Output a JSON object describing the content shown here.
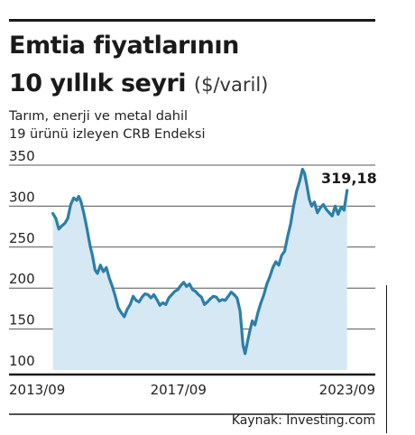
{
  "title_line1": "Emtia fiyatlarının",
  "title_line2": "10 yıllık seyri",
  "unit": "($/varil)",
  "subtitle_line1": "Tarım, enerji ve metal dahil",
  "subtitle_line2": "19 ürünü izleyen CRB Endeksi",
  "source": "Kaynak: Investing.com",
  "chart_data": {
    "type": "area",
    "title": "Emtia fiyatlarının 10 yıllık seyri",
    "subtitle": "Tarım, enerji ve metal dahil 19 ürünü izleyen CRB Endeksi",
    "xlabel": "",
    "ylabel": "",
    "ylim": [
      100,
      350
    ],
    "xlim": [
      2013.67,
      2023.75
    ],
    "y_ticks": [
      350,
      300,
      250,
      200,
      150,
      100
    ],
    "x_tick_labels": [
      {
        "x": 2013.67,
        "label": "2013/09"
      },
      {
        "x": 2017.67,
        "label": "2017/09"
      },
      {
        "x": 2023.67,
        "label": "2023/09"
      }
    ],
    "grid": "horizontal",
    "colors": {
      "line": "#2b7fa8",
      "fill": "#d6e8f3",
      "grid": "#555555"
    },
    "last_value_label": "319,18",
    "series": [
      {
        "x": [
          2013.75,
          2013.85,
          2013.95,
          2014.05,
          2014.15,
          2014.25,
          2014.35,
          2014.45,
          2014.55,
          2014.62,
          2014.7,
          2014.8,
          2014.9,
          2015.0,
          2015.08,
          2015.17,
          2015.25,
          2015.35,
          2015.45,
          2015.55,
          2015.65,
          2015.75,
          2015.85,
          2015.95,
          2016.05,
          2016.15,
          2016.25,
          2016.35,
          2016.45,
          2016.55,
          2016.65,
          2016.75,
          2016.85,
          2016.95,
          2017.05,
          2017.15,
          2017.25,
          2017.35,
          2017.45,
          2017.55,
          2017.65,
          2017.75,
          2017.85,
          2017.95,
          2018.05,
          2018.15,
          2018.25,
          2018.35,
          2018.45,
          2018.55,
          2018.65,
          2018.75,
          2018.85,
          2018.95,
          2019.05,
          2019.15,
          2019.25,
          2019.35,
          2019.45,
          2019.55,
          2019.65,
          2019.75,
          2019.85,
          2019.95,
          2020.05,
          2020.15,
          2020.22,
          2020.3,
          2020.38,
          2020.46,
          2020.55,
          2020.65,
          2020.75,
          2020.85,
          2020.95,
          2021.05,
          2021.15,
          2021.25,
          2021.35,
          2021.45,
          2021.55,
          2021.65,
          2021.75,
          2021.85,
          2021.95,
          2022.05,
          2022.15,
          2022.22,
          2022.3,
          2022.38,
          2022.46,
          2022.55,
          2022.65,
          2022.75,
          2022.85,
          2022.95,
          2023.05,
          2023.15,
          2023.25,
          2023.35,
          2023.45,
          2023.55,
          2023.65
        ],
        "values": [
          291,
          285,
          272,
          276,
          279,
          285,
          302,
          310,
          307,
          312,
          305,
          290,
          272,
          252,
          240,
          222,
          218,
          228,
          220,
          225,
          212,
          202,
          190,
          176,
          170,
          165,
          174,
          180,
          190,
          185,
          183,
          189,
          193,
          192,
          188,
          192,
          186,
          179,
          182,
          180,
          188,
          192,
          196,
          198,
          203,
          207,
          202,
          205,
          198,
          196,
          192,
          189,
          180,
          183,
          187,
          190,
          189,
          184,
          186,
          185,
          190,
          195,
          192,
          188,
          172,
          130,
          120,
          135,
          148,
          160,
          155,
          170,
          182,
          192,
          205,
          214,
          225,
          232,
          228,
          240,
          245,
          263,
          278,
          300,
          318,
          330,
          345,
          340,
          325,
          308,
          300,
          305,
          292,
          298,
          302,
          296,
          292,
          288,
          300,
          290,
          299,
          295,
          319.18
        ]
      }
    ]
  }
}
